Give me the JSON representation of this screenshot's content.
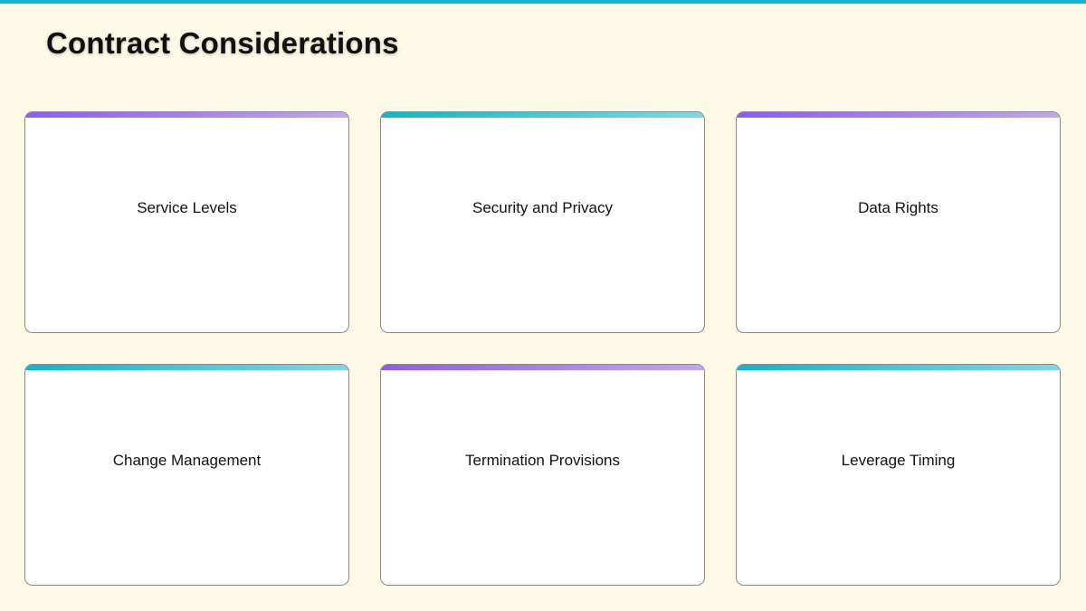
{
  "title": "Contract Considerations",
  "colors": {
    "accent_top": "#0fb5d0",
    "purple": "#8b5cf0",
    "cyan": "#0fb5d0",
    "background": "#fcf9e6"
  },
  "cards": [
    {
      "label": "Service Levels",
      "accent": "purple"
    },
    {
      "label": "Security and Privacy",
      "accent": "cyan"
    },
    {
      "label": "Data Rights",
      "accent": "purple"
    },
    {
      "label": "Change Management",
      "accent": "cyan"
    },
    {
      "label": "Termination Provisions",
      "accent": "purple"
    },
    {
      "label": "Leverage Timing",
      "accent": "cyan"
    }
  ]
}
